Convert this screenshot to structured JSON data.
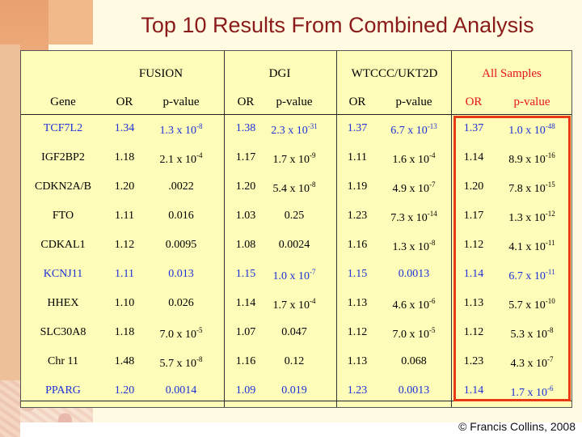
{
  "title": "Top 10 Results From Combined Analysis",
  "copyright": "© Francis Collins, 2008",
  "colors": {
    "title": "#8b1a1a",
    "blue_rows": "#1d33d6",
    "all_samples": "#e8141b",
    "highlight": "#ea3a14"
  },
  "groups": [
    "FUSION",
    "DGI",
    "WTCCC/UKT2D",
    "All Samples"
  ],
  "columns": [
    "Gene",
    "OR",
    "p-value",
    "OR",
    "p-value",
    "OR",
    "p-value",
    "OR",
    "p-value"
  ],
  "rows": [
    {
      "gene": "TCF7L2",
      "blue": true,
      "vals": [
        [
          "1.34",
          "1.3 x 10",
          "-8"
        ],
        [
          "1.38",
          "2.3 x 10",
          "-31"
        ],
        [
          "1.37",
          "6.7 x 10",
          "-13"
        ],
        [
          "1.37",
          "1.0 x 10",
          "-48"
        ]
      ]
    },
    {
      "gene": "IGF2BP2",
      "blue": false,
      "vals": [
        [
          "1.18",
          "2.1 x 10",
          "-4"
        ],
        [
          "1.17",
          "1.7 x 10",
          "-9"
        ],
        [
          "1.11",
          "1.6 x 10",
          "-4"
        ],
        [
          "1.14",
          "8.9 x 10",
          "-16"
        ]
      ]
    },
    {
      "gene": "CDKN2A/B",
      "blue": false,
      "vals": [
        [
          "1.20",
          ".0022",
          ""
        ],
        [
          "1.20",
          "5.4 x 10",
          "-8"
        ],
        [
          "1.19",
          "4.9 x 10",
          "-7"
        ],
        [
          "1.20",
          "7.8 x 10",
          "-15"
        ]
      ]
    },
    {
      "gene": "FTO",
      "blue": false,
      "vals": [
        [
          "1.11",
          "0.016",
          ""
        ],
        [
          "1.03",
          "0.25",
          ""
        ],
        [
          "1.23",
          "7.3 x 10",
          "-14"
        ],
        [
          "1.17",
          "1.3 x 10",
          "-12"
        ]
      ]
    },
    {
      "gene": "CDKAL1",
      "blue": false,
      "vals": [
        [
          "1.12",
          "0.0095",
          ""
        ],
        [
          "1.08",
          "0.0024",
          ""
        ],
        [
          "1.16",
          "1.3 x 10",
          "-8"
        ],
        [
          "1.12",
          "4.1 x 10",
          "-11"
        ]
      ]
    },
    {
      "gene": "KCNJ11",
      "blue": true,
      "vals": [
        [
          "1.11",
          "0.013",
          ""
        ],
        [
          "1.15",
          "1.0 x 10",
          "-7"
        ],
        [
          "1.15",
          "0.0013",
          ""
        ],
        [
          "1.14",
          "6.7 x 10",
          "-11"
        ]
      ]
    },
    {
      "gene": "HHEX",
      "blue": false,
      "vals": [
        [
          "1.10",
          "0.026",
          ""
        ],
        [
          "1.14",
          "1.7 x 10",
          "-4"
        ],
        [
          "1.13",
          "4.6 x 10",
          "-6"
        ],
        [
          "1.13",
          "5.7 x 10",
          "-10"
        ]
      ]
    },
    {
      "gene": "SLC30A8",
      "blue": false,
      "vals": [
        [
          "1.18",
          "7.0 x 10",
          "-5"
        ],
        [
          "1.07",
          "0.047",
          ""
        ],
        [
          "1.12",
          "7.0 x 10",
          "-5"
        ],
        [
          "1.12",
          "5.3 x 10",
          "-8"
        ]
      ]
    },
    {
      "gene": "Chr 11",
      "blue": false,
      "vals": [
        [
          "1.48",
          "5.7 x 10",
          "-8"
        ],
        [
          "1.16",
          "0.12",
          ""
        ],
        [
          "1.13",
          "0.068",
          ""
        ],
        [
          "1.23",
          "4.3 x 10",
          "-7"
        ]
      ]
    },
    {
      "gene": "PPARG",
      "blue": true,
      "vals": [
        [
          "1.20",
          "0.0014",
          ""
        ],
        [
          "1.09",
          "0.019",
          ""
        ],
        [
          "1.23",
          "0.0013",
          ""
        ],
        [
          "1.14",
          "1.7 x 10",
          "-6"
        ]
      ]
    }
  ]
}
